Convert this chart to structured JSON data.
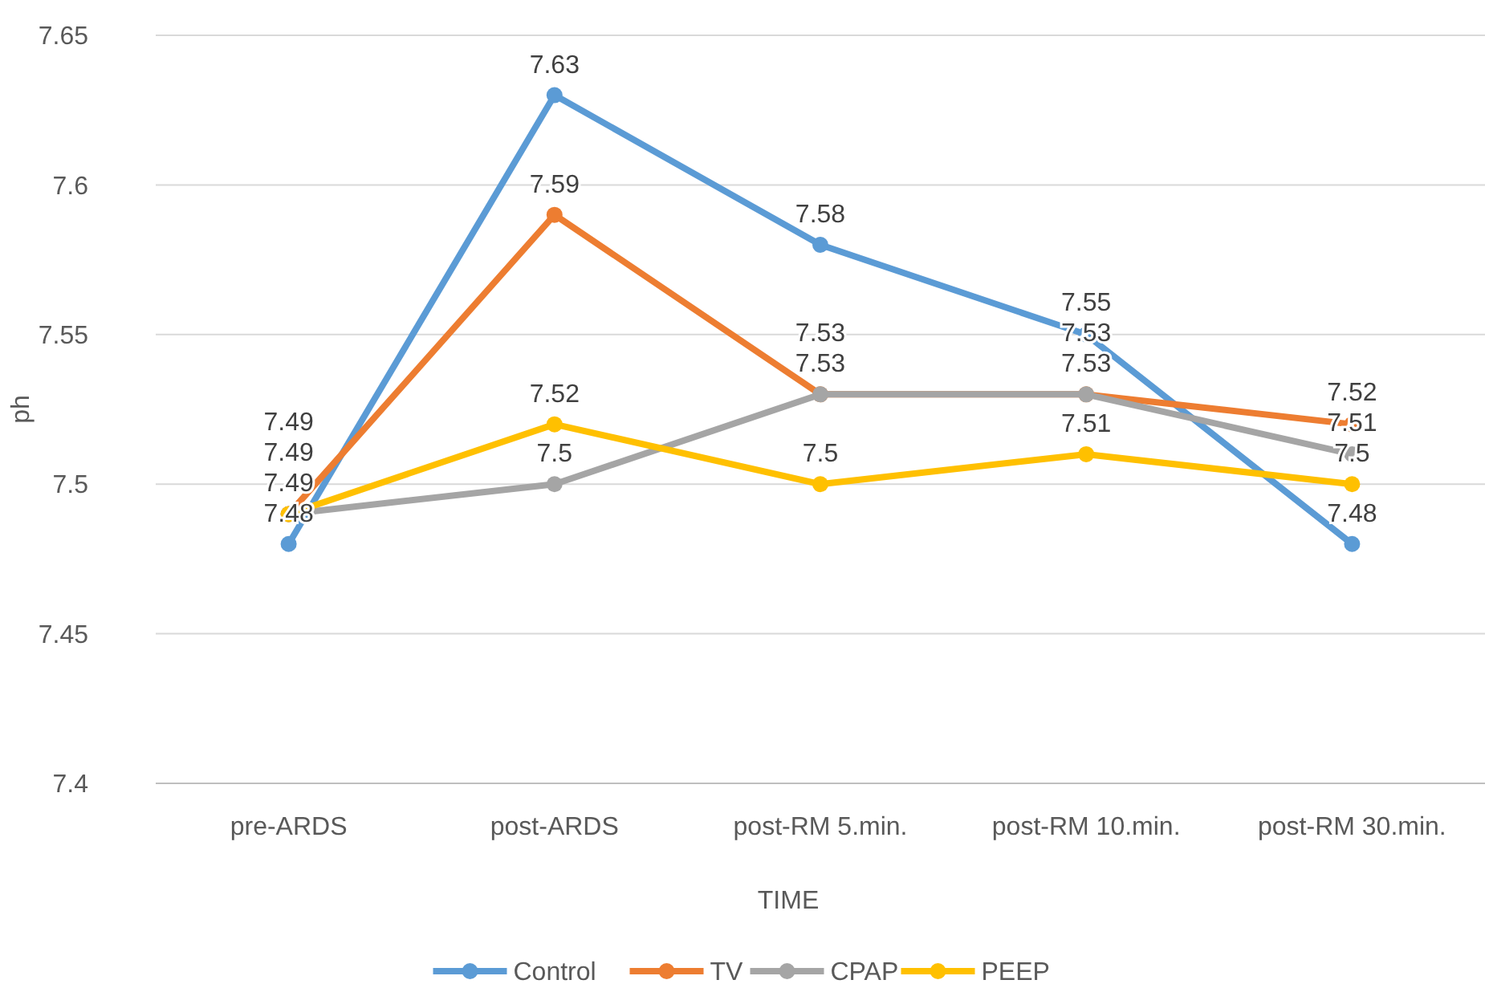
{
  "chart_data": {
    "type": "line",
    "xlabel": "TIME",
    "ylabel": "ph",
    "categories": [
      "pre-ARDS",
      "post-ARDS",
      "post-RM 5.min.",
      "post-RM 10.min.",
      "post-RM 30.min."
    ],
    "series": [
      {
        "name": "Control",
        "color": "#5b9bd5",
        "values": [
          7.48,
          7.63,
          7.58,
          7.55,
          7.48
        ]
      },
      {
        "name": "TV",
        "color": "#ed7d31",
        "values": [
          7.49,
          7.59,
          7.53,
          7.53,
          7.52
        ]
      },
      {
        "name": "CPAP",
        "color": "#a5a5a5",
        "values": [
          7.49,
          7.5,
          7.53,
          7.53,
          7.51
        ]
      },
      {
        "name": "PEEP",
        "color": "#ffc000",
        "values": [
          7.49,
          7.52,
          7.5,
          7.51,
          7.5
        ]
      }
    ],
    "ylim": [
      7.4,
      7.65
    ],
    "yticks": [
      7.4,
      7.45,
      7.5,
      7.55,
      7.6,
      7.65
    ],
    "grid": "y",
    "legend": "bottom",
    "marker": "circle",
    "line_style": "solid",
    "data_labels": true
  }
}
